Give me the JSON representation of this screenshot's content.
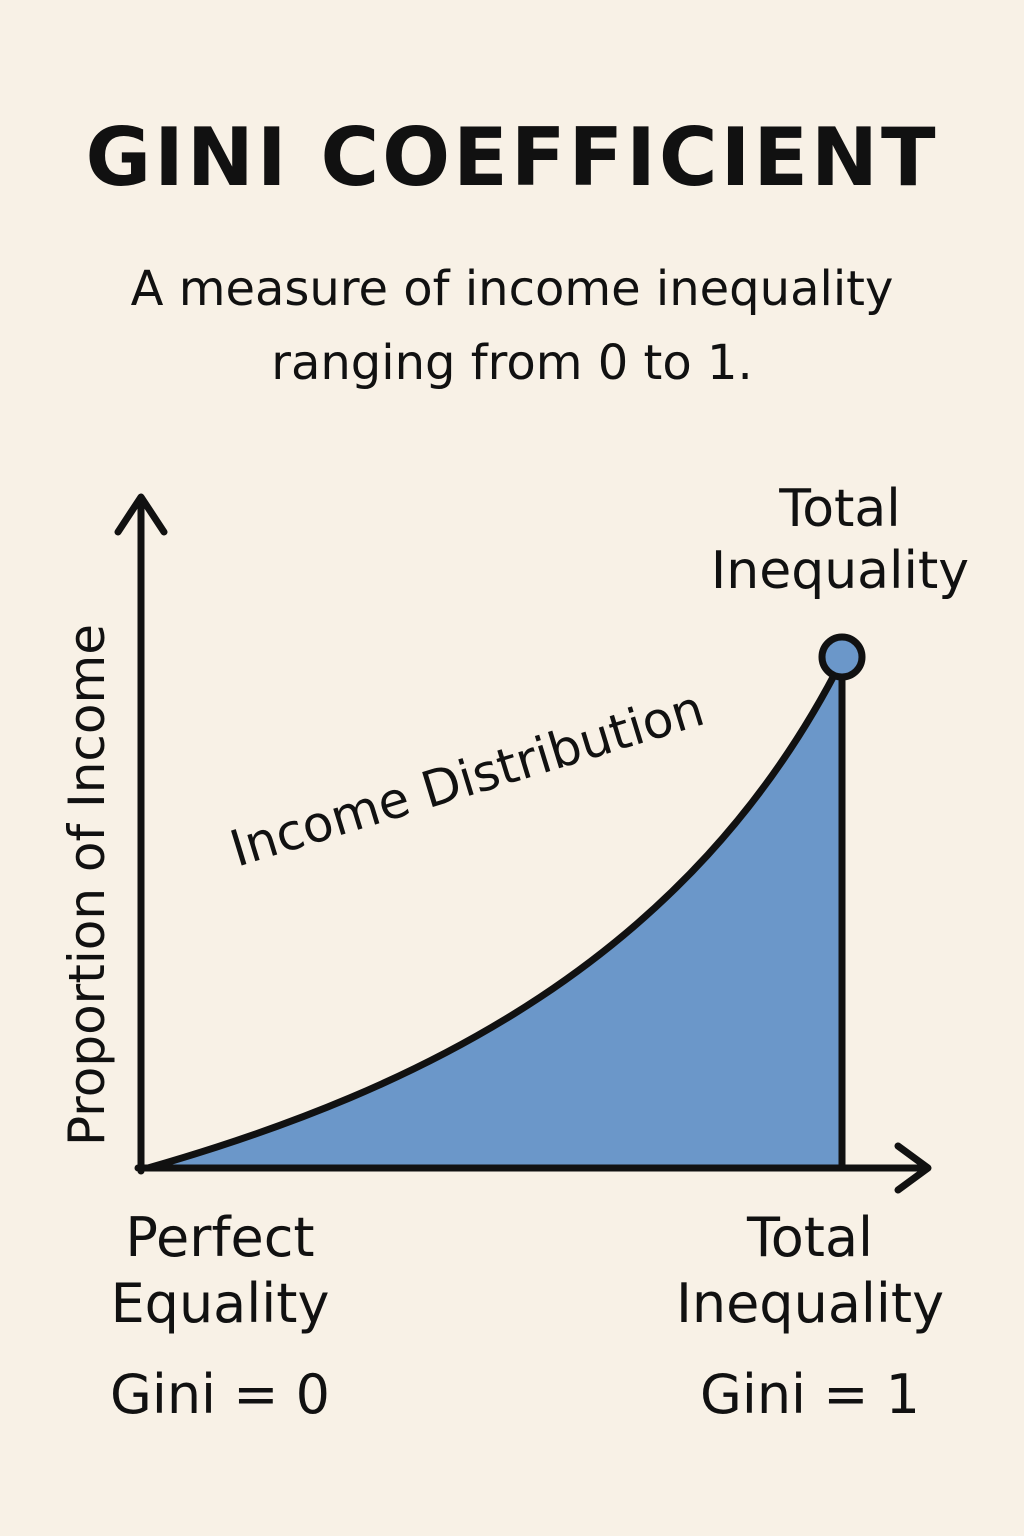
{
  "title": "GINI COEFFICIENT",
  "subtitle": {
    "line1": "A measure of income inequality",
    "line2": "ranging from 0 to 1."
  },
  "chart": {
    "ylabel": "Proportion of Income",
    "curve_label": "Income Distribution",
    "top_label": {
      "line1": "Total",
      "line2": "Inequality"
    },
    "left_label": {
      "line1": "Perfect",
      "line2": "Equality",
      "gini": "Gini = 0"
    },
    "right_label": {
      "line1": "Total",
      "line2": "Inequality",
      "gini": "Gini = 1"
    },
    "fill_color": "#6b97c9",
    "endpoint_color": "#6b97c9",
    "line_color": "#111111"
  },
  "colors": {
    "background": "#f8f1e6",
    "text": "#111111",
    "area_fill": "#6b97c9"
  }
}
